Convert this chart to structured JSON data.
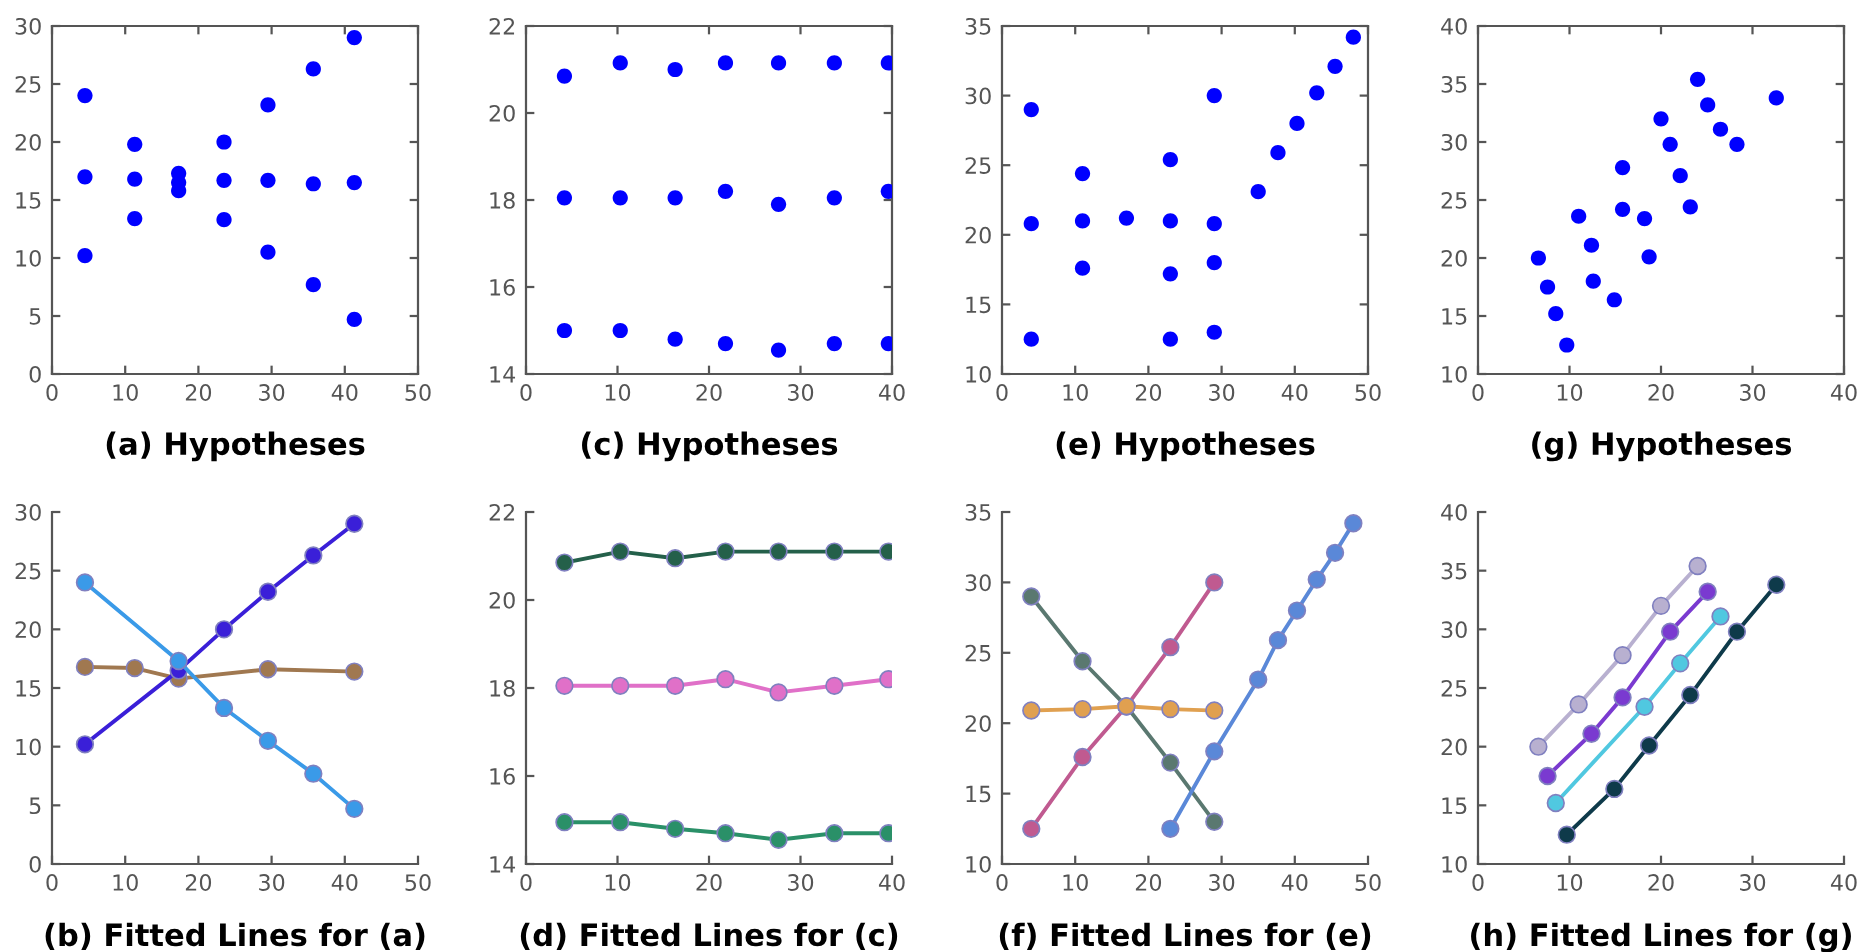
{
  "chart_data": [
    {
      "type": "scatter",
      "title": "(a) Hypotheses",
      "xlim": [
        0,
        50
      ],
      "ylim": [
        0,
        30
      ],
      "xticks": [
        0,
        10,
        20,
        30,
        40,
        50
      ],
      "yticks": [
        0,
        5,
        10,
        15,
        20,
        25,
        30
      ],
      "marker": "circle",
      "series": [
        {
          "color": "#0000ff",
          "x": [
            4.5,
            4.5,
            4.5,
            11.3,
            11.3,
            11.3,
            17.3,
            17.3,
            17.3,
            23.5,
            23.5,
            23.5,
            29.5,
            29.5,
            29.5,
            35.7,
            35.7,
            35.7,
            41.3,
            41.3,
            41.3
          ],
          "values": [
            24,
            17,
            10.2,
            19.8,
            16.8,
            13.4,
            17.3,
            16.5,
            15.8,
            20,
            16.7,
            13.3,
            23.2,
            16.7,
            10.5,
            26.3,
            16.4,
            7.7,
            29,
            16.5,
            4.7
          ]
        }
      ]
    },
    {
      "type": "scatter",
      "title": "(c) Hypotheses",
      "xlim": [
        0,
        40
      ],
      "ylim": [
        14,
        22
      ],
      "xticks": [
        0,
        10,
        20,
        30,
        40
      ],
      "yticks": [
        14,
        16,
        18,
        20,
        22
      ],
      "marker": "circle",
      "series": [
        {
          "color": "#0000ff",
          "x": [
            4.2,
            10.3,
            16.3,
            21.8,
            27.6,
            33.7,
            39.6,
            4.2,
            10.3,
            16.3,
            21.8,
            27.6,
            33.7,
            39.6,
            4.2,
            10.3,
            16.3,
            21.8,
            27.6,
            33.7,
            39.6
          ],
          "values": [
            20.85,
            21.15,
            21.0,
            21.15,
            21.15,
            21.15,
            21.15,
            18.05,
            18.05,
            18.05,
            18.2,
            17.9,
            18.05,
            18.2,
            15.0,
            15.0,
            14.8,
            14.7,
            14.55,
            14.7,
            14.7
          ]
        }
      ]
    },
    {
      "type": "scatter",
      "title": "(e) Hypotheses",
      "xlim": [
        0,
        50
      ],
      "ylim": [
        10,
        35
      ],
      "xticks": [
        0,
        10,
        20,
        30,
        40,
        50
      ],
      "yticks": [
        10,
        15,
        20,
        25,
        30,
        35
      ],
      "marker": "circle",
      "series": [
        {
          "color": "#0000ff",
          "x": [
            4,
            4,
            4,
            11,
            11,
            11,
            17,
            23,
            23,
            23,
            23,
            29,
            29,
            29,
            29,
            35,
            37.7,
            40.3,
            43,
            45.5,
            48
          ],
          "values": [
            29,
            20.8,
            12.5,
            24.4,
            21,
            17.6,
            21.2,
            25.4,
            21,
            17.2,
            12.5,
            30,
            20.8,
            18,
            13,
            23.1,
            25.9,
            28,
            30.2,
            32.1,
            34.2
          ]
        }
      ]
    },
    {
      "type": "scatter",
      "title": "(g) Hypotheses",
      "xlim": [
        0,
        40
      ],
      "ylim": [
        10,
        40
      ],
      "xticks": [
        0,
        10,
        20,
        30,
        40
      ],
      "yticks": [
        10,
        15,
        20,
        25,
        30,
        35,
        40
      ],
      "marker": "circle",
      "series": [
        {
          "color": "#0000ff",
          "x": [
            6.6,
            7.6,
            8.5,
            9.7,
            11,
            12.4,
            12.6,
            14.9,
            15.8,
            15.8,
            18.2,
            18.7,
            20,
            21,
            22.1,
            23.2,
            24,
            25.1,
            26.5,
            28.3,
            32.6
          ],
          "values": [
            20,
            17.5,
            15.2,
            12.5,
            23.6,
            21.1,
            18,
            16.4,
            27.8,
            24.2,
            23.4,
            20.1,
            32,
            29.8,
            27.1,
            24.4,
            35.4,
            33.2,
            31.1,
            29.8,
            33.8
          ]
        }
      ]
    },
    {
      "type": "line",
      "title": "(b) Fitted Lines for (a)",
      "xlim": [
        0,
        50
      ],
      "ylim": [
        0,
        30
      ],
      "xticks": [
        0,
        10,
        20,
        30,
        40,
        50
      ],
      "yticks": [
        0,
        5,
        10,
        15,
        20,
        25,
        30
      ],
      "marker": "circle",
      "series": [
        {
          "color": "#a07850",
          "x": [
            4.5,
            11.3,
            17.3,
            29.5,
            41.3
          ],
          "values": [
            16.8,
            16.7,
            15.8,
            16.6,
            16.4
          ]
        },
        {
          "color": "#3a1fd8",
          "x": [
            4.5,
            17.3,
            23.5,
            29.5,
            35.7,
            41.3
          ],
          "values": [
            10.2,
            16.5,
            20,
            23.2,
            26.3,
            29
          ]
        },
        {
          "color": "#3a9ae8",
          "x": [
            4.5,
            17.3,
            23.5,
            29.5,
            35.7,
            41.3
          ],
          "values": [
            24,
            17.3,
            13.3,
            10.5,
            7.7,
            4.7
          ]
        }
      ]
    },
    {
      "type": "line",
      "title": "(d) Fitted Lines for (c)",
      "xlim": [
        0,
        40
      ],
      "ylim": [
        14,
        22
      ],
      "xticks": [
        0,
        10,
        20,
        30,
        40
      ],
      "yticks": [
        14,
        16,
        18,
        20,
        22
      ],
      "marker": "circle",
      "series": [
        {
          "color": "#24604a",
          "x": [
            4.2,
            10.3,
            16.3,
            21.8,
            27.6,
            33.7,
            39.6
          ],
          "values": [
            20.85,
            21.1,
            20.95,
            21.1,
            21.1,
            21.1,
            21.1
          ]
        },
        {
          "color": "#e070c8",
          "x": [
            4.2,
            10.3,
            16.3,
            21.8,
            27.6,
            33.7,
            39.6
          ],
          "values": [
            18.05,
            18.05,
            18.05,
            18.2,
            17.9,
            18.05,
            18.2
          ]
        },
        {
          "color": "#2a9068",
          "x": [
            4.2,
            10.3,
            16.3,
            21.8,
            27.6,
            33.7,
            39.6
          ],
          "values": [
            14.95,
            14.95,
            14.8,
            14.7,
            14.55,
            14.7,
            14.7
          ]
        }
      ]
    },
    {
      "type": "line",
      "title": "(f) Fitted Lines for (e)",
      "xlim": [
        0,
        50
      ],
      "ylim": [
        10,
        35
      ],
      "xticks": [
        0,
        10,
        20,
        30,
        40,
        50
      ],
      "yticks": [
        10,
        15,
        20,
        25,
        30,
        35
      ],
      "marker": "circle",
      "series": [
        {
          "color": "#c05a90",
          "x": [
            4,
            11,
            17,
            23,
            29
          ],
          "values": [
            12.5,
            17.6,
            21.2,
            25.4,
            30
          ]
        },
        {
          "color": "#5a7870",
          "x": [
            4,
            11,
            17,
            23,
            29
          ],
          "values": [
            29,
            24.4,
            21.2,
            17.2,
            13
          ]
        },
        {
          "color": "#e0a050",
          "x": [
            4,
            11,
            17,
            23,
            29
          ],
          "values": [
            20.9,
            21,
            21.2,
            21,
            20.9
          ]
        },
        {
          "color": "#5a88d8",
          "x": [
            23,
            29,
            35,
            37.7,
            40.3,
            43,
            45.5,
            48
          ],
          "values": [
            12.5,
            18,
            23.1,
            25.9,
            28,
            30.2,
            32.1,
            34.2
          ]
        }
      ]
    },
    {
      "type": "line",
      "title": "(h) Fitted Lines for (g)",
      "xlim": [
        0,
        40
      ],
      "ylim": [
        10,
        40
      ],
      "xticks": [
        0,
        10,
        20,
        30,
        40
      ],
      "yticks": [
        10,
        15,
        20,
        25,
        30,
        35,
        40
      ],
      "marker": "circle",
      "series": [
        {
          "color": "#b8b0d0",
          "x": [
            6.6,
            11,
            15.8,
            20,
            24
          ],
          "values": [
            20,
            23.6,
            27.8,
            32,
            35.4
          ]
        },
        {
          "color": "#7a3ad0",
          "x": [
            7.6,
            12.4,
            15.8,
            21,
            25.1
          ],
          "values": [
            17.5,
            21.1,
            24.2,
            29.8,
            33.2
          ]
        },
        {
          "color": "#50c8e0",
          "x": [
            8.5,
            18.2,
            22.1,
            26.5
          ],
          "values": [
            15.2,
            23.4,
            27.1,
            31.1
          ]
        },
        {
          "color": "#0e3a4a",
          "x": [
            9.7,
            14.9,
            18.7,
            23.2,
            28.3,
            32.6
          ],
          "values": [
            12.5,
            16.4,
            20.1,
            24.4,
            29.8,
            33.8
          ]
        }
      ]
    }
  ]
}
